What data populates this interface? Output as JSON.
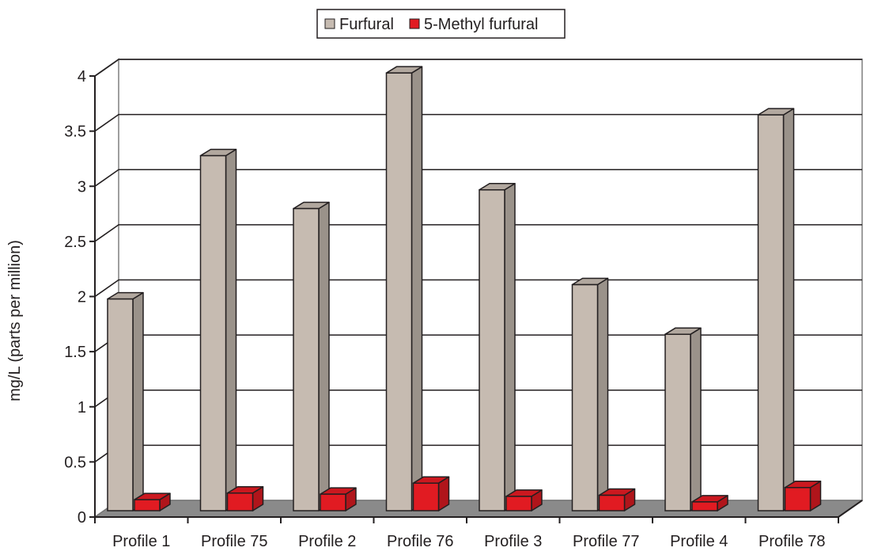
{
  "chart_data": {
    "type": "bar",
    "title": "",
    "xlabel": "",
    "ylabel": "mg/L (parts per million)",
    "categories": [
      "Profile 1",
      "Profile 75",
      "Profile 2",
      "Profile 76",
      "Profile 3",
      "Profile 77",
      "Profile 4",
      "Profile 78"
    ],
    "series": [
      {
        "name": "Furfural",
        "color": "#c6bbb1",
        "values": [
          1.92,
          3.22,
          2.74,
          3.97,
          2.91,
          2.05,
          1.6,
          3.59
        ]
      },
      {
        "name": "5-Methyl furfural",
        "color": "#e11b22",
        "values": [
          0.1,
          0.16,
          0.15,
          0.25,
          0.13,
          0.14,
          0.08,
          0.21
        ]
      }
    ],
    "ylim": [
      0,
      4
    ],
    "yticks": [
      "0",
      "0.5",
      "1",
      "1.5",
      "2",
      "2.5",
      "3",
      "3.5",
      "4"
    ],
    "grid": true,
    "legend_position": "top-center"
  }
}
